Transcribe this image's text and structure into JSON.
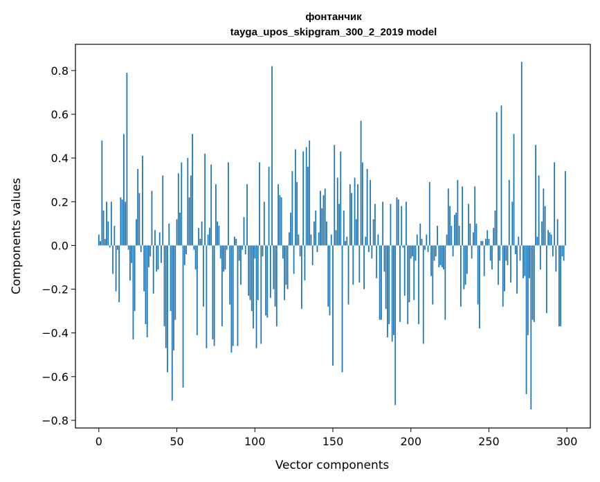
{
  "chart_data": {
    "type": "bar",
    "title": "фонтанчик",
    "subtitle": "tayga_upos_skipgram_300_2_2019 model",
    "xlabel": "Vector components",
    "ylabel": "Components values",
    "xlim": [
      -15,
      315
    ],
    "ylim": [
      -0.835,
      0.92
    ],
    "xticks": [
      0,
      50,
      100,
      150,
      200,
      250,
      300
    ],
    "xtick_labels": [
      "0",
      "50",
      "100",
      "150",
      "200",
      "250",
      "300"
    ],
    "yticks": [
      -0.8,
      -0.6,
      -0.4,
      -0.2,
      0.0,
      0.2,
      0.4,
      0.6,
      0.8
    ],
    "ytick_labels": [
      "−0.8",
      "−0.6",
      "−0.4",
      "−0.2",
      "0.0",
      "0.2",
      "0.4",
      "0.6",
      "0.8"
    ],
    "grid": false,
    "legend": "none",
    "bar_color": "#1f77b4",
    "values": [
      0.05,
      0.02,
      0.48,
      0.16,
      0.03,
      0.2,
      0.11,
      -0.01,
      0.2,
      -0.13,
      0.09,
      -0.21,
      -0.02,
      -0.26,
      0.22,
      0.21,
      0.51,
      0.2,
      0.79,
      -0.02,
      -0.16,
      -0.08,
      -0.43,
      -0.3,
      0.12,
      0.35,
      0.24,
      -0.03,
      0.41,
      -0.21,
      -0.36,
      -0.42,
      -0.1,
      -0.05,
      0.25,
      -0.22,
      0.07,
      -0.12,
      -0.11,
      0.06,
      -0.08,
      0.32,
      -0.37,
      -0.47,
      -0.58,
      0.1,
      -0.3,
      -0.71,
      -0.48,
      -0.34,
      0.12,
      0.33,
      0.15,
      0.38,
      -0.65,
      -0.09,
      -0.04,
      0.4,
      0.22,
      0.32,
      0.51,
      -0.02,
      -0.11,
      -0.41,
      0.08,
      0.03,
      0.11,
      -0.28,
      0.42,
      -0.47,
      0.05,
      0.08,
      0.37,
      -0.43,
      -0.46,
      0.28,
      0.11,
      0.09,
      -0.06,
      -0.37,
      -0.12,
      -0.11,
      -0.02,
      0.38,
      -0.27,
      -0.49,
      -0.46,
      0.04,
      0.03,
      -0.46,
      -0.07,
      -0.18,
      -0.02,
      0.13,
      -0.04,
      0.28,
      -0.23,
      -0.25,
      -0.3,
      -0.38,
      -0.06,
      -0.47,
      -0.25,
      0.38,
      -0.45,
      -0.05,
      0.2,
      -0.32,
      -0.33,
      0.36,
      -0.24,
      0.82,
      -0.2,
      -0.28,
      -0.37,
      0.28,
      0.23,
      0.22,
      -0.06,
      -0.25,
      -0.18,
      -0.2,
      0.06,
      0.15,
      0.34,
      -0.13,
      0.44,
      0.29,
      0.05,
      -0.05,
      -0.29,
      0.43,
      -0.16,
      0.45,
      0.36,
      0.48,
      0.05,
      -0.09,
      0.11,
      0.16,
      -0.03,
      0.06,
      0.25,
      0.17,
      0.23,
      0.26,
      0.11,
      -0.28,
      -0.32,
      0.05,
      -0.55,
      0.46,
      0.07,
      0.31,
      0.19,
      0.43,
      -0.58,
      0.16,
      0.02,
      0.04,
      -0.27,
      0.28,
      0.24,
      -0.18,
      0.31,
      0.12,
      0.28,
      -0.17,
      0.57,
      0.38,
      -0.2,
      0.04,
      0.35,
      -0.03,
      0.3,
      -0.06,
      0.12,
      0.19,
      -0.15,
      0.05,
      -0.34,
      -0.34,
      0.2,
      -0.12,
      -0.29,
      -0.42,
      -0.36,
      0.19,
      -0.44,
      -0.41,
      -0.73,
      0.22,
      0.21,
      -0.35,
      0.18,
      -0.01,
      -0.23,
      0.2,
      -0.36,
      -0.26,
      -0.06,
      -0.05,
      -0.25,
      -0.07,
      0.05,
      -0.36,
      0.1,
      0.03,
      -0.45,
      -0.02,
      0.05,
      -0.03,
      0.29,
      -0.14,
      -0.27,
      -0.07,
      -0.05,
      0.09,
      -0.1,
      -0.09,
      -0.1,
      -0.11,
      -0.34,
      0.05,
      0.26,
      0.18,
      0.09,
      -0.05,
      0.14,
      0.15,
      0.3,
      0.09,
      -0.28,
      0.27,
      -0.2,
      -0.18,
      -0.13,
      0.19,
      0.1,
      -0.06,
      0.06,
      0.27,
      0.1,
      -0.27,
      -0.38,
      0.02,
      0.02,
      -0.14,
      0.03,
      0.07,
      0.03,
      -0.07,
      -0.11,
      0.08,
      0.16,
      0.61,
      -0.18,
      -0.07,
      0.64,
      -0.28,
      -0.21,
      -0.07,
      -0.09,
      0.3,
      -0.17,
      0.2,
      0.51,
      -0.04,
      -0.22,
      0.04,
      -0.07,
      0.84,
      -0.15,
      -0.14,
      -0.68,
      -0.41,
      -0.15,
      -0.75,
      -0.34,
      -0.35,
      0.46,
      0.04,
      0.32,
      -0.11,
      0.11,
      0.26,
      0.18,
      -0.31,
      0.07,
      0.06,
      0.05,
      -0.05,
      0.38,
      -0.12,
      0.12,
      -0.37,
      -0.37,
      -0.05,
      -0.07,
      0.34
    ]
  }
}
